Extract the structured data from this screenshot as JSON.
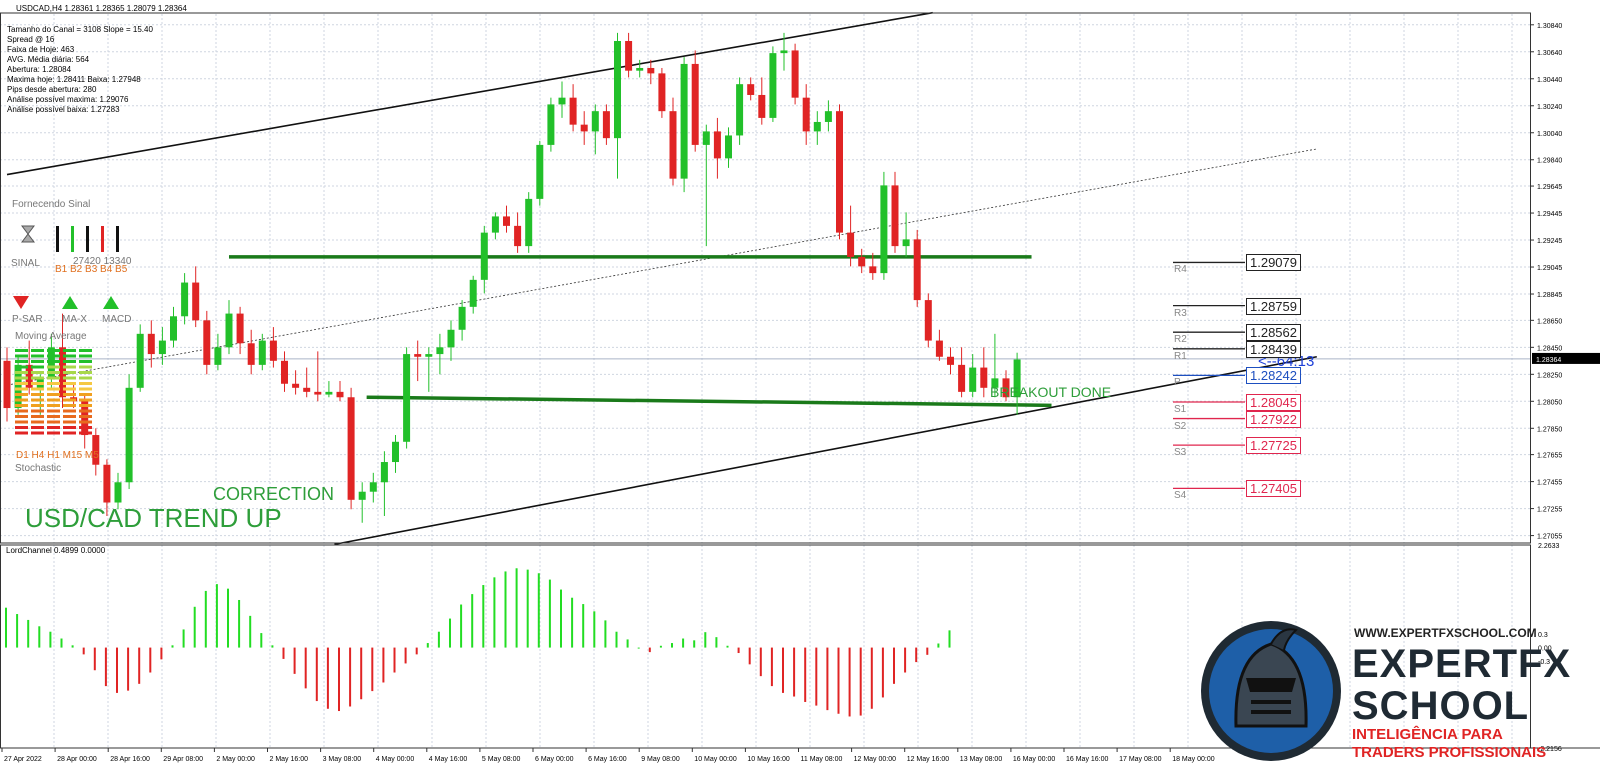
{
  "window": {
    "title": "USDCAD,H4  1.28361 1.28365 1.28079 1.28364"
  },
  "info_panel": [
    "Tamanho do Canal = 3108 Slope = 15.40",
    "Spread @ 16",
    "Faixa de Hoje: 463",
    "AVG. Média diária: 564",
    "Abertura: 1.28084",
    "Maxima hoje: 1.28411  Baixa: 1.27948",
    "Pips desde abertura: 280",
    "Análise possível maxima: 1.29076",
    "Análise possível baixa: 1.27283"
  ],
  "indicator_panel": {
    "header": "Fornecendo Sinal",
    "sinal": "SINAL",
    "numbers": "27420  13340",
    "b_labels": "B1 B2 B3 B4 B5",
    "psar": "P-SAR",
    "max": "MA-X",
    "macd": "MACD",
    "moving_average": "Moving Average",
    "timeframes": "D1 H4 H1 M15  M5",
    "stochastic": "Stochastic",
    "colors": {
      "down": "#e02424",
      "up": "#22c02a"
    }
  },
  "annotations": {
    "trend": "USD/CAD TREND UP",
    "correction": "CORRECTION",
    "breakout": "BREAKOUT DONE",
    "timer": "<--64:13"
  },
  "pivots": [
    {
      "name": "R4",
      "value": "1.29079",
      "level": 1.29079,
      "color": "#222222"
    },
    {
      "name": "R3",
      "value": "1.28759",
      "level": 1.28759,
      "color": "#222222"
    },
    {
      "name": "R2",
      "value": "1.28562",
      "level": 1.28562,
      "color": "#222222"
    },
    {
      "name": "R1",
      "value": "1.28439",
      "level": 1.28439,
      "color": "#222222"
    },
    {
      "name": "P",
      "value": "1.28242",
      "level": 1.28242,
      "color": "#1d4fc0"
    },
    {
      "name": "S1",
      "value": "1.28045",
      "level": 1.28045,
      "color": "#e0264e"
    },
    {
      "name": "S2",
      "value": "1.27922",
      "level": 1.27922,
      "color": "#e0264e"
    },
    {
      "name": "S3",
      "value": "1.27725",
      "level": 1.27725,
      "color": "#e0264e"
    },
    {
      "name": "S4",
      "value": "1.27405",
      "level": 1.27405,
      "color": "#e0264e"
    }
  ],
  "price_axis": {
    "ticks": [
      "1.30840",
      "1.30640",
      "1.30440",
      "1.30240",
      "1.30040",
      "1.29840",
      "1.29645",
      "1.29445",
      "1.29245",
      "1.29045",
      "1.28845",
      "1.28650",
      "1.28450",
      "1.28250",
      "1.28050",
      "1.27850",
      "1.27655",
      "1.27455",
      "1.27255",
      "1.27055"
    ],
    "current": "1.28364"
  },
  "time_axis": {
    "labels": [
      "27 Apr 2022",
      "28 Apr 00:00",
      "28 Apr 16:00",
      "29 Apr 08:00",
      "2 May 00:00",
      "2 May 16:00",
      "3 May 08:00",
      "4 May 00:00",
      "4 May 16:00",
      "5 May 08:00",
      "6 May 00:00",
      "6 May 16:00",
      "9 May 08:00",
      "10 May 00:00",
      "10 May 16:00",
      "11 May 08:00",
      "12 May 00:00",
      "12 May 16:00",
      "13 May 08:00",
      "16 May 00:00",
      "16 May 16:00",
      "17 May 08:00",
      "18 May 00:00"
    ]
  },
  "sub_window": {
    "title": "LordChannel 0.4899 0.0000",
    "ticks": [
      "2.2633",
      "0.3",
      "0.00",
      "-0.3",
      "-2.2156"
    ]
  },
  "brand": {
    "site": "WWW.EXPERTFXSCHOOL.COM",
    "line1": "EXPERTFX",
    "line2": "SCHOOL",
    "tag1": "INTELIGÊNCIA PARA",
    "tag2": "TRADERS PROFISSIONAIS"
  },
  "chart_data": [
    {
      "type": "candlestick",
      "title": "USDCAD,H4",
      "y_range": [
        1.27,
        1.3092
      ],
      "colors": {
        "bull": "#22c02a",
        "bear": "#e02424"
      },
      "candles": [
        {
          "o": 1.2835,
          "h": 1.2845,
          "l": 1.279,
          "c": 1.28
        },
        {
          "o": 1.28,
          "h": 1.2838,
          "l": 1.2795,
          "c": 1.2832
        },
        {
          "o": 1.2832,
          "h": 1.285,
          "l": 1.281,
          "c": 1.2815
        },
        {
          "o": 1.2815,
          "h": 1.2825,
          "l": 1.2795,
          "c": 1.2822
        },
        {
          "o": 1.2822,
          "h": 1.2855,
          "l": 1.2815,
          "c": 1.2845
        },
        {
          "o": 1.2845,
          "h": 1.287,
          "l": 1.28,
          "c": 1.2808
        },
        {
          "o": 1.2808,
          "h": 1.2818,
          "l": 1.28,
          "c": 1.2805
        },
        {
          "o": 1.2805,
          "h": 1.281,
          "l": 1.277,
          "c": 1.278
        },
        {
          "o": 1.278,
          "h": 1.2785,
          "l": 1.275,
          "c": 1.2758
        },
        {
          "o": 1.2758,
          "h": 1.2762,
          "l": 1.272,
          "c": 1.273
        },
        {
          "o": 1.273,
          "h": 1.2752,
          "l": 1.2725,
          "c": 1.2745
        },
        {
          "o": 1.2745,
          "h": 1.2825,
          "l": 1.274,
          "c": 1.2815
        },
        {
          "o": 1.2815,
          "h": 1.2862,
          "l": 1.2812,
          "c": 1.2855
        },
        {
          "o": 1.2855,
          "h": 1.2865,
          "l": 1.283,
          "c": 1.284
        },
        {
          "o": 1.284,
          "h": 1.286,
          "l": 1.2832,
          "c": 1.285
        },
        {
          "o": 1.285,
          "h": 1.2875,
          "l": 1.2845,
          "c": 1.2868
        },
        {
          "o": 1.2868,
          "h": 1.29,
          "l": 1.2862,
          "c": 1.2893
        },
        {
          "o": 1.2893,
          "h": 1.2905,
          "l": 1.286,
          "c": 1.2865
        },
        {
          "o": 1.2865,
          "h": 1.2872,
          "l": 1.2825,
          "c": 1.2832
        },
        {
          "o": 1.2832,
          "h": 1.2855,
          "l": 1.2828,
          "c": 1.2845
        },
        {
          "o": 1.2845,
          "h": 1.288,
          "l": 1.284,
          "c": 1.287
        },
        {
          "o": 1.287,
          "h": 1.2875,
          "l": 1.284,
          "c": 1.2848
        },
        {
          "o": 1.2848,
          "h": 1.2858,
          "l": 1.2825,
          "c": 1.2832
        },
        {
          "o": 1.2832,
          "h": 1.2855,
          "l": 1.2828,
          "c": 1.285
        },
        {
          "o": 1.285,
          "h": 1.286,
          "l": 1.283,
          "c": 1.2835
        },
        {
          "o": 1.2835,
          "h": 1.2842,
          "l": 1.2812,
          "c": 1.2818
        },
        {
          "o": 1.2818,
          "h": 1.2828,
          "l": 1.281,
          "c": 1.2815
        },
        {
          "o": 1.2815,
          "h": 1.283,
          "l": 1.2808,
          "c": 1.2812
        },
        {
          "o": 1.2812,
          "h": 1.2842,
          "l": 1.2805,
          "c": 1.281
        },
        {
          "o": 1.281,
          "h": 1.282,
          "l": 1.2808,
          "c": 1.2812
        },
        {
          "o": 1.2812,
          "h": 1.282,
          "l": 1.2805,
          "c": 1.2808
        },
        {
          "o": 1.2808,
          "h": 1.2815,
          "l": 1.2725,
          "c": 1.2732
        },
        {
          "o": 1.2732,
          "h": 1.2745,
          "l": 1.2715,
          "c": 1.2738
        },
        {
          "o": 1.2738,
          "h": 1.2752,
          "l": 1.273,
          "c": 1.2745
        },
        {
          "o": 1.2745,
          "h": 1.2768,
          "l": 1.272,
          "c": 1.276
        },
        {
          "o": 1.276,
          "h": 1.278,
          "l": 1.2752,
          "c": 1.2775
        },
        {
          "o": 1.2775,
          "h": 1.2845,
          "l": 1.277,
          "c": 1.284
        },
        {
          "o": 1.284,
          "h": 1.285,
          "l": 1.282,
          "c": 1.2838
        },
        {
          "o": 1.2838,
          "h": 1.2845,
          "l": 1.2812,
          "c": 1.284
        },
        {
          "o": 1.284,
          "h": 1.2855,
          "l": 1.2825,
          "c": 1.2845
        },
        {
          "o": 1.2845,
          "h": 1.2865,
          "l": 1.2835,
          "c": 1.2858
        },
        {
          "o": 1.2858,
          "h": 1.288,
          "l": 1.285,
          "c": 1.2875
        },
        {
          "o": 1.2875,
          "h": 1.2898,
          "l": 1.287,
          "c": 1.2895
        },
        {
          "o": 1.2895,
          "h": 1.2935,
          "l": 1.2885,
          "c": 1.293
        },
        {
          "o": 1.293,
          "h": 1.2945,
          "l": 1.2925,
          "c": 1.2942
        },
        {
          "o": 1.2942,
          "h": 1.295,
          "l": 1.293,
          "c": 1.2935
        },
        {
          "o": 1.2935,
          "h": 1.2945,
          "l": 1.2915,
          "c": 1.292
        },
        {
          "o": 1.292,
          "h": 1.296,
          "l": 1.2915,
          "c": 1.2955
        },
        {
          "o": 1.2955,
          "h": 1.2998,
          "l": 1.295,
          "c": 1.2995
        },
        {
          "o": 1.2995,
          "h": 1.303,
          "l": 1.299,
          "c": 1.3025
        },
        {
          "o": 1.3025,
          "h": 1.3042,
          "l": 1.3015,
          "c": 1.303
        },
        {
          "o": 1.303,
          "h": 1.304,
          "l": 1.3005,
          "c": 1.301
        },
        {
          "o": 1.301,
          "h": 1.302,
          "l": 1.2995,
          "c": 1.3005
        },
        {
          "o": 1.3005,
          "h": 1.3025,
          "l": 1.2988,
          "c": 1.302
        },
        {
          "o": 1.302,
          "h": 1.3025,
          "l": 1.2995,
          "c": 1.3
        },
        {
          "o": 1.3,
          "h": 1.3078,
          "l": 1.297,
          "c": 1.3072
        },
        {
          "o": 1.3072,
          "h": 1.3078,
          "l": 1.3045,
          "c": 1.305
        },
        {
          "o": 1.305,
          "h": 1.3058,
          "l": 1.3045,
          "c": 1.3052
        },
        {
          "o": 1.3052,
          "h": 1.3058,
          "l": 1.304,
          "c": 1.3048
        },
        {
          "o": 1.3048,
          "h": 1.3052,
          "l": 1.3015,
          "c": 1.302
        },
        {
          "o": 1.302,
          "h": 1.303,
          "l": 1.2965,
          "c": 1.297
        },
        {
          "o": 1.297,
          "h": 1.306,
          "l": 1.296,
          "c": 1.3055
        },
        {
          "o": 1.3055,
          "h": 1.3065,
          "l": 1.299,
          "c": 1.2995
        },
        {
          "o": 1.2995,
          "h": 1.301,
          "l": 1.292,
          "c": 1.3005
        },
        {
          "o": 1.3005,
          "h": 1.3015,
          "l": 1.297,
          "c": 1.2985
        },
        {
          "o": 1.2985,
          "h": 1.3008,
          "l": 1.2978,
          "c": 1.3002
        },
        {
          "o": 1.3002,
          "h": 1.3045,
          "l": 1.2995,
          "c": 1.304
        },
        {
          "o": 1.304,
          "h": 1.3045,
          "l": 1.3028,
          "c": 1.3032
        },
        {
          "o": 1.3032,
          "h": 1.3045,
          "l": 1.301,
          "c": 1.3015
        },
        {
          "o": 1.3015,
          "h": 1.3068,
          "l": 1.3012,
          "c": 1.3063
        },
        {
          "o": 1.3063,
          "h": 1.3078,
          "l": 1.305,
          "c": 1.3065
        },
        {
          "o": 1.3065,
          "h": 1.307,
          "l": 1.3025,
          "c": 1.303
        },
        {
          "o": 1.303,
          "h": 1.304,
          "l": 1.2995,
          "c": 1.3005
        },
        {
          "o": 1.3005,
          "h": 1.302,
          "l": 1.2995,
          "c": 1.3012
        },
        {
          "o": 1.3012,
          "h": 1.3028,
          "l": 1.3005,
          "c": 1.302
        },
        {
          "o": 1.302,
          "h": 1.3025,
          "l": 1.2925,
          "c": 1.293
        },
        {
          "o": 1.293,
          "h": 1.295,
          "l": 1.2905,
          "c": 1.2912
        },
        {
          "o": 1.2912,
          "h": 1.2918,
          "l": 1.29,
          "c": 1.2905
        },
        {
          "o": 1.2905,
          "h": 1.2915,
          "l": 1.2895,
          "c": 1.29
        },
        {
          "o": 1.29,
          "h": 1.2975,
          "l": 1.2895,
          "c": 1.2965
        },
        {
          "o": 1.2965,
          "h": 1.2975,
          "l": 1.2915,
          "c": 1.292
        },
        {
          "o": 1.292,
          "h": 1.2945,
          "l": 1.2912,
          "c": 1.2925
        },
        {
          "o": 1.2925,
          "h": 1.2932,
          "l": 1.2875,
          "c": 1.288
        },
        {
          "o": 1.288,
          "h": 1.2885,
          "l": 1.2845,
          "c": 1.285
        },
        {
          "o": 1.285,
          "h": 1.2858,
          "l": 1.2835,
          "c": 1.2838
        },
        {
          "o": 1.2838,
          "h": 1.2845,
          "l": 1.2825,
          "c": 1.2832
        },
        {
          "o": 1.2832,
          "h": 1.2845,
          "l": 1.2808,
          "c": 1.2812
        },
        {
          "o": 1.2812,
          "h": 1.284,
          "l": 1.2808,
          "c": 1.283
        },
        {
          "o": 1.283,
          "h": 1.2845,
          "l": 1.2808,
          "c": 1.2815
        },
        {
          "o": 1.2815,
          "h": 1.2855,
          "l": 1.2808,
          "c": 1.2822
        },
        {
          "o": 1.2822,
          "h": 1.2828,
          "l": 1.2805,
          "c": 1.2808
        },
        {
          "o": 1.2808,
          "h": 1.2841,
          "l": 1.2795,
          "c": 1.2836
        }
      ],
      "trend_lines": [
        {
          "style": "solid-black",
          "points": [
            [
              0,
              1.2973
            ],
            [
              83.4,
              1.3093
            ]
          ]
        },
        {
          "style": "solid-black",
          "points": [
            [
              29.5,
              1.2699
            ],
            [
              118,
              1.2838
            ]
          ]
        },
        {
          "style": "dotted-black",
          "points": [
            [
              0,
              1.2817
            ],
            [
              118,
              1.2992
            ]
          ]
        },
        {
          "style": "solid-green",
          "points": [
            [
              20,
              1.2912
            ],
            [
              92.3,
              1.2912
            ]
          ]
        },
        {
          "style": "solid-green",
          "points": [
            [
              32.4,
              1.2808
            ],
            [
              94.1,
              1.2802
            ]
          ]
        }
      ]
    },
    {
      "type": "bar",
      "title": "LordChannel 0.4899 0.0000",
      "y_range": [
        -2.2156,
        2.2633
      ],
      "colors": {
        "positive": "#22dd22",
        "negative": "#e02424"
      },
      "values": [
        0.88,
        0.74,
        0.61,
        0.47,
        0.35,
        0.2,
        0.05,
        -0.15,
        -0.5,
        -0.85,
        -1.0,
        -0.95,
        -0.8,
        -0.55,
        -0.26,
        0.05,
        0.4,
        0.9,
        1.25,
        1.4,
        1.3,
        1.05,
        0.7,
        0.32,
        0.05,
        -0.25,
        -0.58,
        -0.9,
        -1.18,
        -1.35,
        -1.4,
        -1.3,
        -1.14,
        -0.96,
        -0.77,
        -0.55,
        -0.35,
        -0.15,
        0.1,
        0.35,
        0.64,
        0.95,
        1.18,
        1.38,
        1.55,
        1.68,
        1.75,
        1.72,
        1.64,
        1.5,
        1.28,
        1.1,
        0.96,
        0.8,
        0.6,
        0.35,
        0.18,
        0.0,
        -0.1,
        0.04,
        0.1,
        0.2,
        0.16,
        0.34,
        0.23,
        0.04,
        -0.12,
        -0.37,
        -0.63,
        -0.85,
        -1.0,
        -1.08,
        -1.2,
        -1.28,
        -1.38,
        -1.46,
        -1.52,
        -1.5,
        -1.35,
        -1.1,
        -0.8,
        -0.55,
        -0.32,
        -0.16,
        0.09,
        0.38
      ]
    }
  ]
}
